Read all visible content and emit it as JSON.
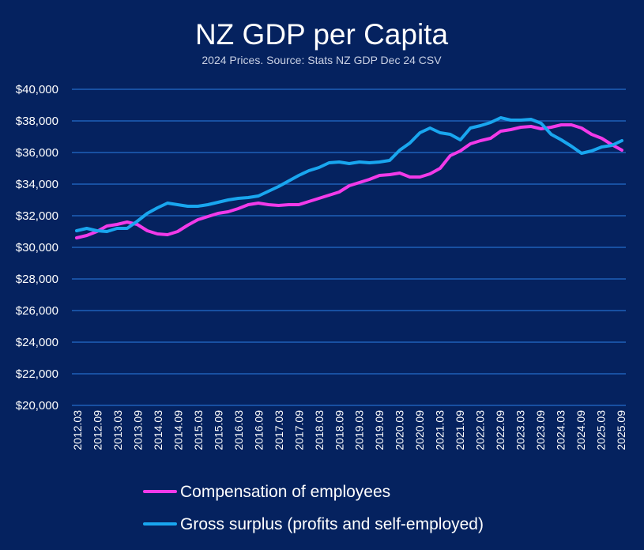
{
  "colors": {
    "background": "#05225f",
    "gridline": "#1f5fb8",
    "text": "#ffffff",
    "subtitle": "#c9d1e4"
  },
  "chart_data": {
    "type": "line",
    "title": "NZ GDP per Capita",
    "subtitle": "2024 Prices. Source: Stats NZ GDP Dec 24 CSV",
    "xlabel": "",
    "ylabel": "",
    "ylim": [
      20000,
      40000
    ],
    "yticks": [
      20000,
      22000,
      24000,
      26000,
      28000,
      30000,
      32000,
      34000,
      36000,
      38000,
      40000
    ],
    "ytick_labels": [
      "$20,000",
      "$22,000",
      "$24,000",
      "$26,000",
      "$28,000",
      "$30,000",
      "$32,000",
      "$34,000",
      "$36,000",
      "$38,000",
      "$40,000"
    ],
    "x_tick_labels": [
      "2012.03",
      "2012.09",
      "2013.03",
      "2013.09",
      "2014.03",
      "2014.09",
      "2015.03",
      "2015.09",
      "2016.03",
      "2016.09",
      "2017.03",
      "2017.09",
      "2018.03",
      "2018.09",
      "2019.03",
      "2019.09",
      "2020.03",
      "2020.09",
      "2021.03",
      "2021.09",
      "2022.03",
      "2022.09",
      "2023.03",
      "2023.09",
      "2024.03",
      "2024.09",
      "2025.03",
      "2025.09"
    ],
    "grid": true,
    "legend_position": "bottom",
    "series": [
      {
        "name": "Compensation of employees",
        "color": "#f23ae9",
        "values": [
          30600,
          30750,
          31000,
          31350,
          31450,
          31600,
          31450,
          31050,
          30850,
          30800,
          31000,
          31400,
          31750,
          31950,
          32150,
          32250,
          32450,
          32700,
          32800,
          32700,
          32650,
          32700,
          32700,
          32900,
          33100,
          33300,
          33500,
          33900,
          34100,
          34300,
          34550,
          34600,
          34700,
          34450,
          34450,
          34650,
          35000,
          35800,
          36100,
          36550,
          36750,
          36900,
          37350,
          37450,
          37600,
          37650,
          37500,
          37600,
          37750,
          37750,
          37550,
          37150,
          36900,
          36500,
          36150
        ]
      },
      {
        "name": "Gross surplus (profits and self-employed)",
        "color": "#19a6ef",
        "values": [
          31050,
          31200,
          31050,
          31000,
          31200,
          31200,
          31650,
          32150,
          32500,
          32800,
          32700,
          32600,
          32600,
          32700,
          32850,
          33000,
          33100,
          33150,
          33250,
          33550,
          33850,
          34200,
          34550,
          34850,
          35050,
          35350,
          35400,
          35300,
          35400,
          35350,
          35400,
          35500,
          36150,
          36600,
          37250,
          37550,
          37250,
          37150,
          36800,
          37550,
          37700,
          37900,
          38200,
          38050,
          38050,
          38100,
          37850,
          37150,
          36800,
          36400,
          35950,
          36100,
          36350,
          36450,
          36750
        ]
      }
    ]
  }
}
